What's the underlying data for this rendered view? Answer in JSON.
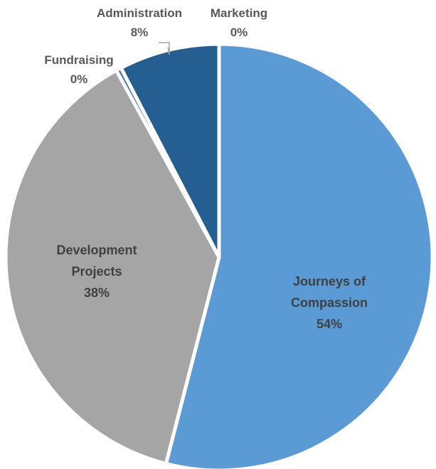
{
  "chart_data": {
    "type": "pie",
    "title": "",
    "slices": [
      {
        "name": "Journeys of Compassion",
        "label_lines": [
          "Journeys of",
          "Compassion"
        ],
        "value": 54,
        "pct_label": "54%",
        "color": "#5b9bd5",
        "label_color": "#404040"
      },
      {
        "name": "Development Projects",
        "label_lines": [
          "Development",
          "Projects"
        ],
        "value": 38,
        "pct_label": "38%",
        "color": "#a5a5a5",
        "label_color": "#404040"
      },
      {
        "name": "Fundraising",
        "label_lines": [
          "Fundraising"
        ],
        "value": 0.4,
        "pct_label": "0%",
        "color": "#4472c4",
        "label_color": "#595959"
      },
      {
        "name": "Administration",
        "label_lines": [
          "Administration"
        ],
        "value": 7.6,
        "pct_label": "8%",
        "color": "#255e91",
        "label_color": "#595959"
      },
      {
        "name": "Marketing",
        "label_lines": [
          "Marketing"
        ],
        "value": 0,
        "pct_label": "0%",
        "color": "#ed7d31",
        "label_color": "#595959"
      }
    ],
    "start_angle_deg": 0,
    "direction": "clockwise",
    "legend": "none"
  }
}
